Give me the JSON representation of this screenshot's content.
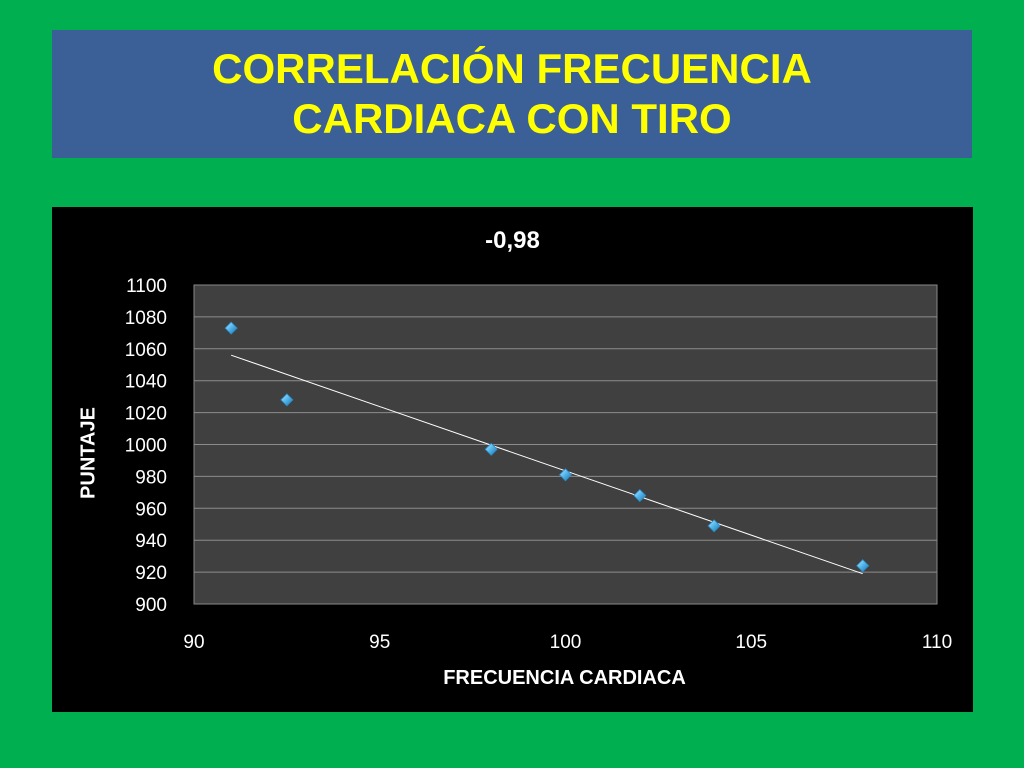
{
  "slide": {
    "title_line1": "CORRELACIÓN FRECUENCIA",
    "title_line2": "CARDIACA CON TIRO"
  },
  "colors": {
    "background": "#00b050",
    "title_bg": "#3b5f97",
    "title_text": "#ffff00",
    "chart_bg": "#000000",
    "plot_bg": "#404040",
    "marker": "#4fb3e8",
    "trendline": "#ffffff"
  },
  "chart_data": {
    "type": "scatter",
    "title": "-0,98",
    "xlabel": "FRECUENCIA CARDIACA",
    "ylabel": "PUNTAJE",
    "xlim": [
      90,
      110
    ],
    "ylim": [
      900,
      1100
    ],
    "xticks": [
      90,
      95,
      100,
      105,
      110
    ],
    "yticks": [
      900,
      920,
      940,
      960,
      980,
      1000,
      1020,
      1040,
      1060,
      1080,
      1100
    ],
    "grid": true,
    "series": [
      {
        "x": [
          91,
          92.5,
          98,
          100,
          102,
          104,
          108
        ],
        "y": [
          1073,
          1028,
          997,
          981,
          968,
          949,
          924
        ]
      }
    ],
    "trendline": {
      "x": [
        91,
        108
      ],
      "y": [
        1056,
        919
      ]
    }
  }
}
